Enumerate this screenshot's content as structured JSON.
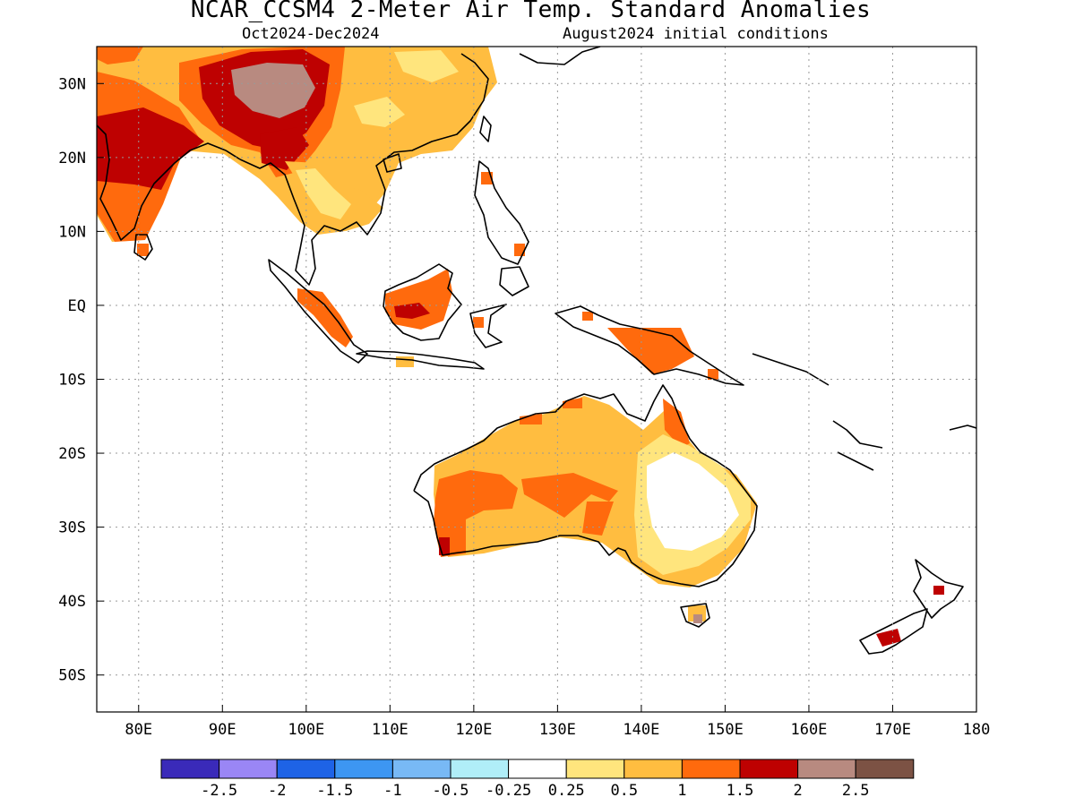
{
  "title": "NCAR_CCSM4 2-Meter Air Temp. Standard Anomalies",
  "subtitle_period": "Oct2024-Dec2024",
  "subtitle_init": "August2024 initial conditions",
  "map": {
    "lon_range": [
      75,
      180
    ],
    "lat_range": [
      -55,
      35
    ],
    "lon_ticks": [
      {
        "value": 80,
        "label": "80E"
      },
      {
        "value": 90,
        "label": "90E"
      },
      {
        "value": 100,
        "label": "100E"
      },
      {
        "value": 110,
        "label": "110E"
      },
      {
        "value": 120,
        "label": "120E"
      },
      {
        "value": 130,
        "label": "130E"
      },
      {
        "value": 140,
        "label": "140E"
      },
      {
        "value": 150,
        "label": "150E"
      },
      {
        "value": 160,
        "label": "160E"
      },
      {
        "value": 170,
        "label": "170E"
      },
      {
        "value": 180,
        "label": "180"
      }
    ],
    "lat_ticks": [
      {
        "value": 30,
        "label": "30N"
      },
      {
        "value": 20,
        "label": "20N"
      },
      {
        "value": 10,
        "label": "10N"
      },
      {
        "value": 0,
        "label": "EQ"
      },
      {
        "value": -10,
        "label": "10S"
      },
      {
        "value": -20,
        "label": "20S"
      },
      {
        "value": -30,
        "label": "30S"
      },
      {
        "value": -40,
        "label": "40S"
      },
      {
        "value": -50,
        "label": "50S"
      }
    ],
    "grid": "dotted"
  },
  "colorbar": {
    "colors": [
      "#3a2ab9",
      "#9a86f5",
      "#1e63e6",
      "#3d96f2",
      "#78b9f5",
      "#b0eef8",
      "#ffffff",
      "#ffe57d",
      "#ffbd40",
      "#ff6a0d",
      "#be0101",
      "#b88a80",
      "#7c5244"
    ],
    "labels": [
      "-2.5",
      "-2",
      "-1.5",
      "-1",
      "-0.5",
      "-0.25",
      "0.25",
      "0.5",
      "1",
      "1.5",
      "2",
      "2.5"
    ]
  },
  "colors": {
    "anom_0_25": "#ffe57d",
    "anom_0_5": "#ffbd40",
    "anom_1": "#ff6a0d",
    "anom_1_5": "#be0101",
    "anom_2": "#b88a80",
    "anom_2_5": "#7c5244"
  }
}
